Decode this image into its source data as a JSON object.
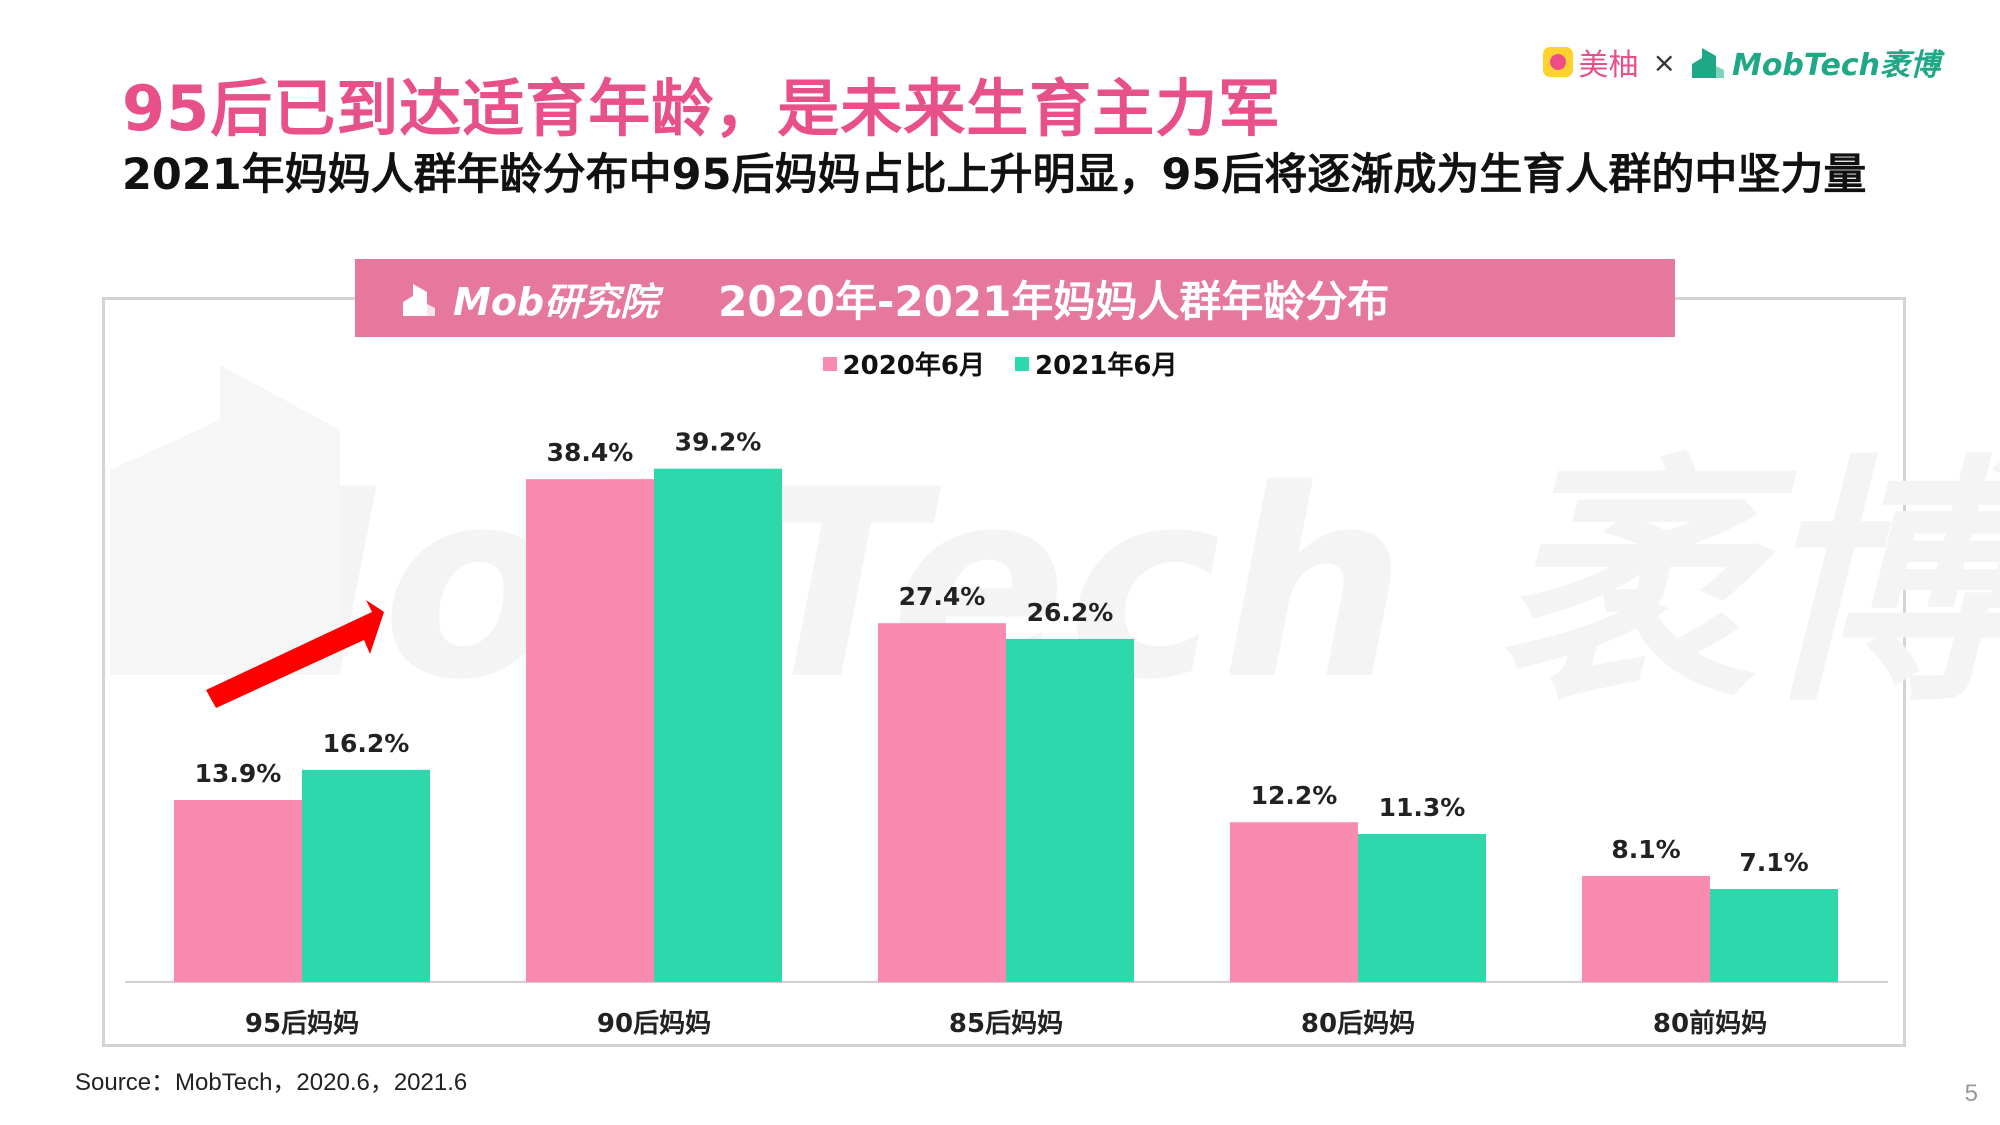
{
  "header": {
    "title": "95后已到达适育年龄，是未来生育主力军",
    "subtitle": "2021年妈妈人群年龄分布中95后妈妈占比上升明显，95后将逐渐成为生育人群的中坚力量"
  },
  "brand": {
    "meiyou": "美柚",
    "times": "×",
    "mobtech": "MobTech袤博"
  },
  "banner": {
    "institute": "Mob研究院",
    "chart_title": "2020年-2021年妈妈人群年龄分布"
  },
  "watermark": "MobTech 袤博",
  "chart_data": {
    "type": "bar",
    "categories": [
      "95后妈妈",
      "90后妈妈",
      "85后妈妈",
      "80后妈妈",
      "80前妈妈"
    ],
    "series": [
      {
        "name": "2020年6月",
        "values": [
          13.9,
          38.4,
          27.4,
          12.2,
          8.1
        ],
        "color": "#f98bb0"
      },
      {
        "name": "2021年6月",
        "values": [
          16.2,
          39.2,
          26.2,
          11.3,
          7.1
        ],
        "color": "#2ed8ad"
      }
    ],
    "unit": "%",
    "ylim": [
      0,
      42
    ],
    "grid": false,
    "legend": "top-center"
  },
  "source": "Source：MobTech，2020.6，2021.6",
  "page_number": "5"
}
